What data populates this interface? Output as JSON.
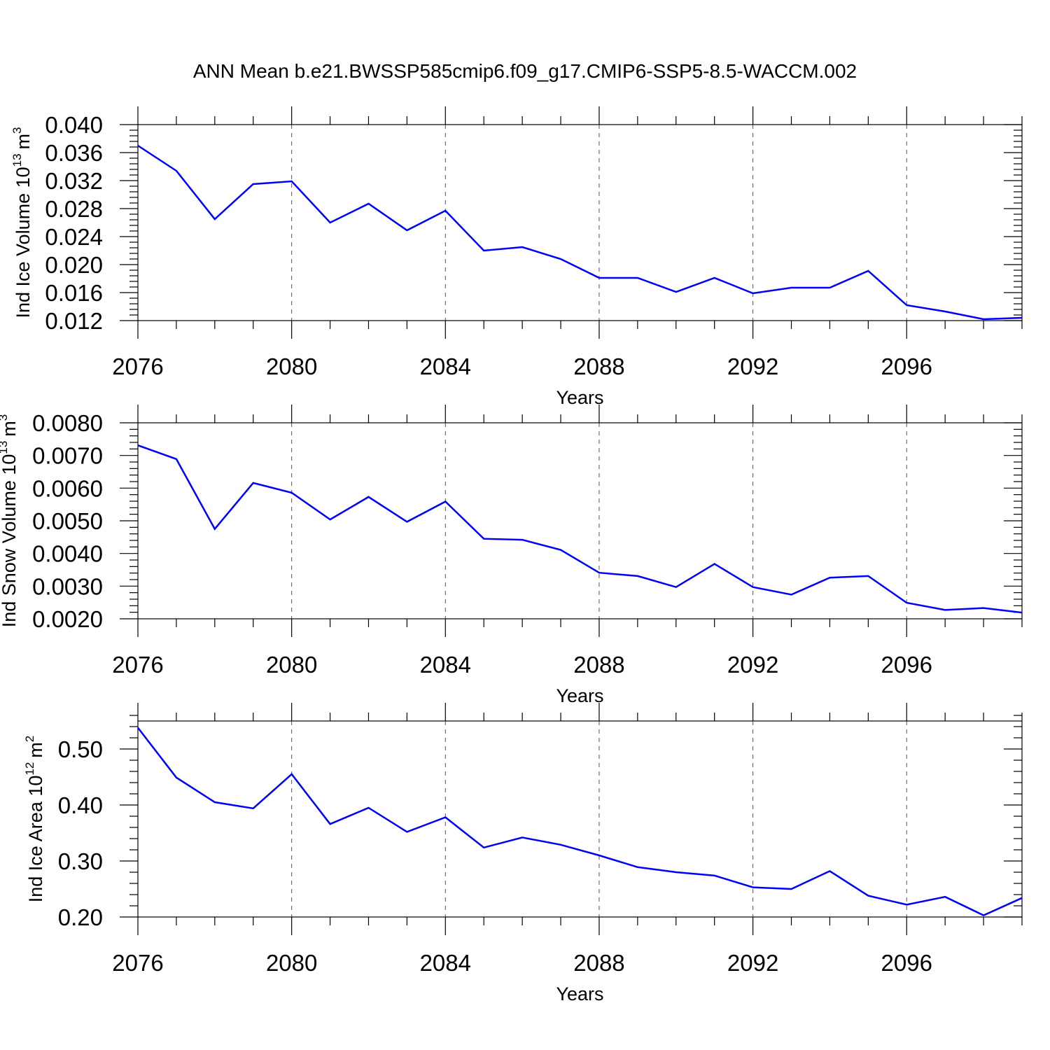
{
  "title": "ANN Mean b.e21.BWSSP585cmip6.f09_g17.CMIP6-SSP5-8.5-WACCM.002",
  "colors": {
    "line": "#0000ff",
    "axis": "#000000",
    "grid": "#555555"
  },
  "chart_data": [
    {
      "type": "line",
      "ylabel_main": "Ind Ice Volume 10",
      "ylabel_sup": "13",
      "ylabel_unit": "m",
      "ylabel_unit_sup": "3",
      "xlabel": "Years",
      "xlim": [
        2076,
        2099
      ],
      "ylim": [
        0.012,
        0.04
      ],
      "xticks": [
        "2076",
        "2080",
        "2084",
        "2088",
        "2092",
        "2096"
      ],
      "xtick_values": [
        2076,
        2080,
        2084,
        2088,
        2092,
        2096
      ],
      "yticks": [
        "0.012",
        "0.016",
        "0.020",
        "0.024",
        "0.028",
        "0.032",
        "0.036",
        "0.040"
      ],
      "ytick_values": [
        0.012,
        0.016,
        0.02,
        0.024,
        0.028,
        0.032,
        0.036,
        0.04
      ],
      "yminor_step": 0.0008,
      "x": [
        2076,
        2077,
        2078,
        2079,
        2080,
        2081,
        2082,
        2083,
        2084,
        2085,
        2086,
        2087,
        2088,
        2089,
        2090,
        2091,
        2092,
        2093,
        2094,
        2095,
        2096,
        2097,
        2098,
        2099
      ],
      "values": [
        0.037,
        0.0334,
        0.0265,
        0.0315,
        0.0319,
        0.026,
        0.0287,
        0.0249,
        0.0277,
        0.022,
        0.0225,
        0.0208,
        0.0181,
        0.0181,
        0.0161,
        0.0181,
        0.0159,
        0.0167,
        0.0167,
        0.0191,
        0.0142,
        0.0133,
        0.0122,
        0.0124
      ]
    },
    {
      "type": "line",
      "ylabel_main": "Ind Snow Volume 10",
      "ylabel_sup": "13",
      "ylabel_unit": "m",
      "ylabel_unit_sup": "3",
      "xlabel": "Years",
      "xlim": [
        2076,
        2099
      ],
      "ylim": [
        0.002,
        0.008
      ],
      "xticks": [
        "2076",
        "2080",
        "2084",
        "2088",
        "2092",
        "2096"
      ],
      "xtick_values": [
        2076,
        2080,
        2084,
        2088,
        2092,
        2096
      ],
      "yticks": [
        "0.0020",
        "0.0030",
        "0.0040",
        "0.0050",
        "0.0060",
        "0.0070",
        "0.0080"
      ],
      "ytick_values": [
        0.002,
        0.003,
        0.004,
        0.005,
        0.006,
        0.007,
        0.008
      ],
      "yminor_step": 0.0002,
      "x": [
        2076,
        2077,
        2078,
        2079,
        2080,
        2081,
        2082,
        2083,
        2084,
        2085,
        2086,
        2087,
        2088,
        2089,
        2090,
        2091,
        2092,
        2093,
        2094,
        2095,
        2096,
        2097,
        2098,
        2099
      ],
      "values": [
        0.00731,
        0.00689,
        0.00475,
        0.00616,
        0.00586,
        0.00504,
        0.00573,
        0.00497,
        0.00559,
        0.00445,
        0.00442,
        0.00411,
        0.00341,
        0.00331,
        0.00297,
        0.00368,
        0.00297,
        0.00274,
        0.00326,
        0.00331,
        0.00249,
        0.00227,
        0.00233,
        0.00219
      ]
    },
    {
      "type": "line",
      "ylabel_main": "Ind Ice Area 10",
      "ylabel_sup": "12",
      "ylabel_unit": "m",
      "ylabel_unit_sup": "2",
      "xlabel": "Years",
      "xlim": [
        2076,
        2099
      ],
      "ylim": [
        0.2,
        0.55
      ],
      "xticks": [
        "2076",
        "2080",
        "2084",
        "2088",
        "2092",
        "2096"
      ],
      "xtick_values": [
        2076,
        2080,
        2084,
        2088,
        2092,
        2096
      ],
      "yticks": [
        "0.20",
        "0.30",
        "0.40",
        "0.50"
      ],
      "ytick_values": [
        0.2,
        0.3,
        0.4,
        0.5
      ],
      "yminor_step": 0.02,
      "x": [
        2076,
        2077,
        2078,
        2079,
        2080,
        2081,
        2082,
        2083,
        2084,
        2085,
        2086,
        2087,
        2088,
        2089,
        2090,
        2091,
        2092,
        2093,
        2094,
        2095,
        2096,
        2097,
        2098,
        2099
      ],
      "values": [
        0.538,
        0.449,
        0.405,
        0.394,
        0.455,
        0.366,
        0.395,
        0.352,
        0.378,
        0.324,
        0.342,
        0.329,
        0.31,
        0.289,
        0.28,
        0.274,
        0.253,
        0.25,
        0.282,
        0.238,
        0.222,
        0.236,
        0.203,
        0.234
      ]
    }
  ]
}
